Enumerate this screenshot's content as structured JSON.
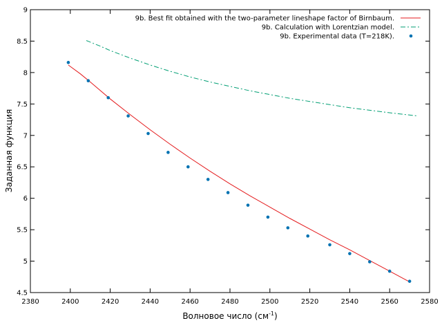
{
  "chart_data": {
    "type": "line",
    "xlabel": "Волновое число (см",
    "xlabel_sup": "-1",
    "xlabel_suffix": ")",
    "ylabel": "Заданная функция",
    "xlim": [
      2380,
      2580
    ],
    "ylim": [
      4.5,
      9
    ],
    "x_ticks": [
      2380,
      2400,
      2420,
      2440,
      2460,
      2480,
      2500,
      2520,
      2540,
      2560,
      2580
    ],
    "y_ticks": [
      4.5,
      5,
      5.5,
      6,
      6.5,
      7,
      7.5,
      8,
      8.5,
      9
    ],
    "grid": false,
    "legend_position": "top-right",
    "series": [
      {
        "name": "9b. Best fit obtained with the two-parameter lineshape factor of Birnbaum.",
        "style": "line",
        "color": "#e41a1c",
        "x": [
          2399,
          2405,
          2410,
          2420,
          2430,
          2440,
          2450,
          2460,
          2470,
          2480,
          2490,
          2500,
          2510,
          2520,
          2530,
          2540,
          2550,
          2560,
          2570
        ],
        "y": [
          8.12,
          7.98,
          7.85,
          7.58,
          7.33,
          7.09,
          6.86,
          6.64,
          6.43,
          6.23,
          6.04,
          5.86,
          5.68,
          5.51,
          5.34,
          5.18,
          5.01,
          4.84,
          4.67
        ]
      },
      {
        "name": "9b. Calculation with Lorentzian model.",
        "style": "dash-dot",
        "color": "#009e73",
        "x": [
          2408,
          2415,
          2420,
          2430,
          2440,
          2450,
          2460,
          2470,
          2480,
          2490,
          2500,
          2510,
          2520,
          2530,
          2540,
          2550,
          2560,
          2574
        ],
        "y": [
          8.51,
          8.42,
          8.35,
          8.23,
          8.12,
          8.02,
          7.93,
          7.85,
          7.78,
          7.71,
          7.65,
          7.59,
          7.54,
          7.49,
          7.44,
          7.4,
          7.36,
          7.31
        ]
      },
      {
        "name": "9b. Experimental data (T=218K).",
        "style": "points",
        "color": "#0072b2",
        "x": [
          2399,
          2409,
          2419,
          2429,
          2439,
          2449,
          2459,
          2469,
          2479,
          2489,
          2499,
          2509,
          2519,
          2530,
          2540,
          2550,
          2560,
          2570
        ],
        "y": [
          8.16,
          7.87,
          7.6,
          7.31,
          7.03,
          6.73,
          6.5,
          6.3,
          6.09,
          5.89,
          5.7,
          5.53,
          5.4,
          5.26,
          5.12,
          4.99,
          4.84,
          4.68
        ]
      }
    ]
  }
}
